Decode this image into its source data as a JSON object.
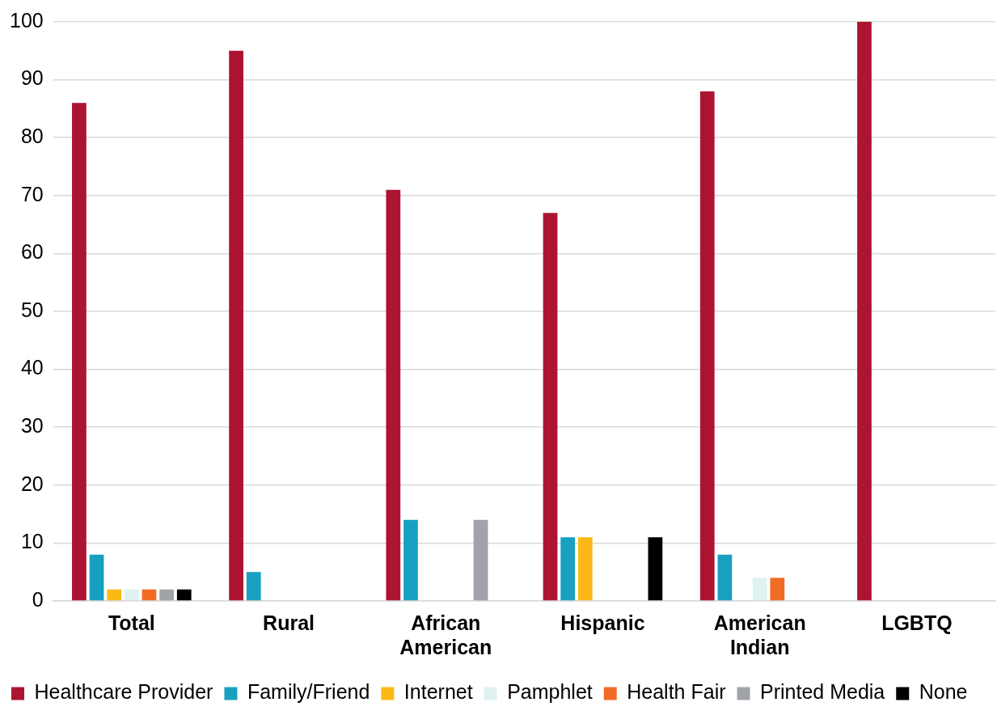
{
  "chart_data": {
    "type": "bar",
    "categories": [
      "Total",
      "Rural",
      "African American",
      "Hispanic",
      "American Indian",
      "LGBTQ"
    ],
    "series": [
      {
        "name": "Healthcare Provider",
        "color": "#ac1431",
        "values": [
          86,
          95,
          71,
          67,
          88,
          100
        ]
      },
      {
        "name": "Family/Friend",
        "color": "#17a0c0",
        "values": [
          8,
          5,
          14,
          11,
          8,
          0
        ]
      },
      {
        "name": "Internet",
        "color": "#fbb917",
        "values": [
          2,
          0,
          0,
          11,
          0,
          0
        ]
      },
      {
        "name": "Pamphlet",
        "color": "#dff1f1",
        "values": [
          2,
          0,
          0,
          0,
          4,
          0
        ]
      },
      {
        "name": "Health Fair",
        "color": "#f26b25",
        "values": [
          2,
          0,
          0,
          0,
          4,
          0
        ]
      },
      {
        "name": "Printed Media",
        "color": "#a0a3a8",
        "values": [
          2,
          0,
          14,
          0,
          0,
          0
        ]
      },
      {
        "name": "None",
        "color": "#000000",
        "values": [
          2,
          0,
          0,
          11,
          0,
          0
        ]
      }
    ],
    "ylim": [
      0,
      100
    ],
    "yticks": [
      0,
      10,
      20,
      30,
      40,
      50,
      60,
      70,
      80,
      90,
      100
    ],
    "grid": "y",
    "legend": "bottom"
  }
}
